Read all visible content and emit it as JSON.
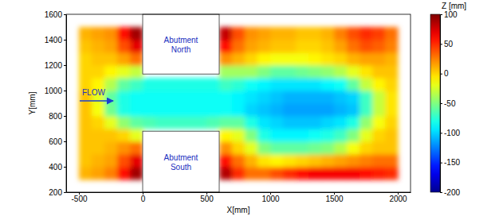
{
  "chart_data": {
    "type": "heatmap",
    "xlabel": "X[mm]",
    "ylabel": "Y[mm]",
    "xlim": [
      -600,
      2100
    ],
    "ylim": [
      200,
      1600
    ],
    "xticks": [
      -500,
      0,
      500,
      1000,
      1500,
      2000
    ],
    "yticks": [
      200,
      400,
      600,
      800,
      1000,
      1200,
      1400,
      1600
    ],
    "x_edges": [
      -500,
      -400,
      -300,
      -200,
      -100,
      0,
      100,
      200,
      300,
      400,
      500,
      600,
      700,
      800,
      900,
      1000,
      1100,
      1200,
      1300,
      1400,
      1500,
      1600,
      1700,
      1800,
      1900,
      2000
    ],
    "y_edges": [
      300,
      400,
      500,
      600,
      700,
      800,
      900,
      1000,
      1100,
      1200,
      1300,
      1400,
      1500
    ],
    "z": [
      [
        10,
        15,
        25,
        60,
        90,
        null,
        null,
        null,
        null,
        null,
        null,
        85,
        50,
        30,
        30,
        40,
        50,
        60,
        65,
        65,
        65,
        65,
        60,
        55,
        50
      ],
      [
        5,
        10,
        15,
        40,
        70,
        null,
        null,
        null,
        null,
        null,
        null,
        60,
        30,
        10,
        -5,
        -10,
        -5,
        0,
        5,
        10,
        15,
        20,
        25,
        30,
        30
      ],
      [
        5,
        5,
        10,
        20,
        30,
        null,
        null,
        null,
        null,
        null,
        null,
        20,
        0,
        -20,
        -50,
        -60,
        -60,
        -60,
        -55,
        -50,
        -35,
        -15,
        0,
        5,
        5
      ],
      [
        5,
        5,
        5,
        0,
        -20,
        null,
        null,
        null,
        null,
        null,
        null,
        -10,
        -20,
        -50,
        -80,
        -90,
        -90,
        -90,
        -85,
        -80,
        -70,
        -50,
        -20,
        0,
        5
      ],
      [
        5,
        0,
        -20,
        -45,
        -60,
        -65,
        -70,
        -70,
        -70,
        -70,
        -65,
        -60,
        -60,
        -80,
        -95,
        -100,
        -105,
        -105,
        -105,
        -100,
        -95,
        -80,
        -45,
        -15,
        0
      ],
      [
        5,
        -15,
        -55,
        -80,
        -85,
        -85,
        -85,
        -85,
        -85,
        -85,
        -85,
        -85,
        -90,
        -100,
        -105,
        -110,
        -115,
        -115,
        -115,
        -115,
        -110,
        -105,
        -70,
        -30,
        -5
      ],
      [
        5,
        -20,
        -60,
        -80,
        -85,
        -85,
        -85,
        -85,
        -85,
        -85,
        -85,
        -85,
        -90,
        -95,
        -100,
        -105,
        -110,
        -110,
        -110,
        -110,
        -105,
        -100,
        -70,
        -30,
        -5
      ],
      [
        0,
        -10,
        -35,
        -60,
        -70,
        -80,
        -80,
        -80,
        -80,
        -80,
        -80,
        -70,
        -75,
        -85,
        -90,
        -95,
        -95,
        -95,
        -95,
        -90,
        -85,
        -60,
        -30,
        -10,
        0
      ],
      [
        0,
        0,
        -10,
        -20,
        -30,
        null,
        null,
        null,
        null,
        null,
        null,
        -40,
        -40,
        -40,
        -50,
        -60,
        -60,
        -55,
        -50,
        -45,
        -35,
        -20,
        -5,
        5,
        5
      ],
      [
        0,
        5,
        5,
        15,
        30,
        null,
        null,
        null,
        null,
        null,
        null,
        20,
        10,
        0,
        -10,
        -15,
        -15,
        -15,
        -10,
        -5,
        0,
        10,
        15,
        15,
        10
      ],
      [
        5,
        10,
        15,
        40,
        70,
        null,
        null,
        null,
        null,
        null,
        null,
        60,
        30,
        15,
        10,
        5,
        5,
        0,
        0,
        5,
        15,
        30,
        40,
        35,
        25
      ],
      [
        10,
        15,
        20,
        60,
        90,
        null,
        null,
        null,
        null,
        null,
        null,
        80,
        40,
        20,
        15,
        10,
        10,
        5,
        5,
        10,
        25,
        40,
        50,
        45,
        30
      ]
    ],
    "colorbar": {
      "label": "Z [mm]",
      "range": [
        -200,
        100
      ],
      "ticks": [
        -200,
        -150,
        -100,
        -50,
        0,
        50,
        100
      ]
    },
    "abutments": [
      {
        "label": "Abutment North",
        "x": [
          0,
          600
        ],
        "y": [
          1130,
          1600
        ]
      },
      {
        "label": "Abutment South",
        "x": [
          0,
          600
        ],
        "y": [
          200,
          680
        ]
      }
    ],
    "annotations": [
      {
        "text": "FLOW"
      }
    ]
  }
}
